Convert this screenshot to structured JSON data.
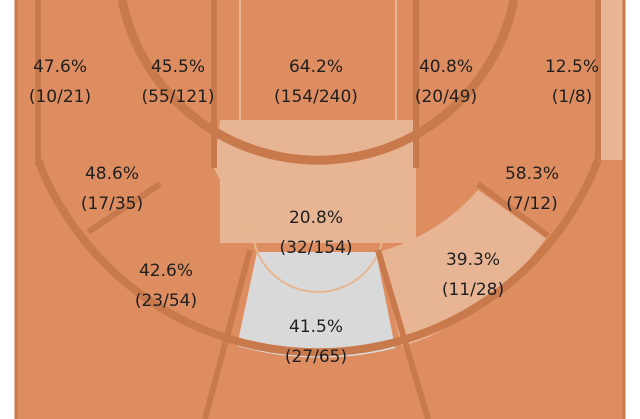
{
  "chart_data": {
    "type": "shot-chart",
    "title": "",
    "colors": {
      "court_background": "#ffffff",
      "court_lines": "#c97a4d",
      "faint_lines": "#e7b690",
      "level_hot": "#de8d61",
      "level_mid": "#e8b594",
      "level_cold": "#d9d9d9"
    },
    "zones": [
      {
        "zone": "left-corner-three",
        "pct": "47.6%",
        "made_attempts": "(10/21)",
        "made": 10,
        "attempts": 21,
        "level": "hot"
      },
      {
        "zone": "left-mid-upper",
        "pct": "45.5%",
        "made_attempts": "(55/121)",
        "made": 55,
        "attempts": 121,
        "level": "hot"
      },
      {
        "zone": "paint-upper",
        "pct": "64.2%",
        "made_attempts": "(154/240)",
        "made": 154,
        "attempts": 240,
        "level": "hot"
      },
      {
        "zone": "right-mid-upper",
        "pct": "40.8%",
        "made_attempts": "(20/49)",
        "made": 20,
        "attempts": 49,
        "level": "hot"
      },
      {
        "zone": "right-corner-three",
        "pct": "12.5%",
        "made_attempts": "(1/8)",
        "made": 1,
        "attempts": 8,
        "level": "mid"
      },
      {
        "zone": "left-wing-mid",
        "pct": "48.6%",
        "made_attempts": "(17/35)",
        "made": 17,
        "attempts": 35,
        "level": "hot"
      },
      {
        "zone": "paint-lower",
        "pct": "20.8%",
        "made_attempts": "(32/154)",
        "made": 32,
        "attempts": 154,
        "level": "mid"
      },
      {
        "zone": "right-wing-mid",
        "pct": "58.3%",
        "made_attempts": "(7/12)",
        "made": 7,
        "attempts": 12,
        "level": "hot"
      },
      {
        "zone": "left-wing-three",
        "pct": "42.6%",
        "made_attempts": "(23/54)",
        "made": 23,
        "attempts": 54,
        "level": "hot"
      },
      {
        "zone": "center-mid",
        "pct": "41.5%",
        "made_attempts": "(27/65)",
        "made": 27,
        "attempts": 65,
        "level": "cold"
      },
      {
        "zone": "right-elbow-mid",
        "pct": "39.3%",
        "made_attempts": "(11/28)",
        "made": 11,
        "attempts": 28,
        "level": "mid"
      }
    ]
  }
}
